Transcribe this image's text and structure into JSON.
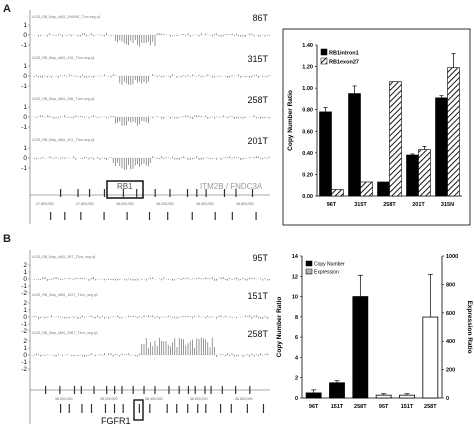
{
  "panels": [
    {
      "letter": "A",
      "genome": {
        "tracks": [
          {
            "sample": "86T",
            "header": "U133_RB_Map_s861_190695_T1nn.seg q1"
          },
          {
            "sample": "315T",
            "header": "U133_RB_Map_s861_315_T1nn.seg q1"
          },
          {
            "sample": "258T",
            "header": "U133_RB_Map_s861_258_T1nn.seg q1"
          },
          {
            "sample": "201T",
            "header": "U133_RB_Map_s861_201_T1nn.seg q1"
          }
        ],
        "y_ticks": [
          "1",
          "0",
          "-1"
        ],
        "gene_labels": [
          "RB1",
          "ITM2B / FNDC3A"
        ],
        "coordinates": [
          "47,500,000",
          "47,800,000",
          "48,000,000",
          "48,200,000",
          "48,400,000",
          "48,600,000"
        ]
      }
    },
    {
      "letter": "B",
      "genome": {
        "tracks": [
          {
            "sample": "95T",
            "header": "U133_RB_Map_s861_95T_T1nn_seg q1"
          },
          {
            "sample": "151T",
            "header": "U133_RB_Map_s861_151T_T1nn_seg q1"
          },
          {
            "sample": "258T",
            "header": "U133_RB_Map_s861_258T_T1nn_seg q1"
          }
        ],
        "y_ticks": [
          "2",
          "1",
          "0",
          "-1",
          "-2"
        ],
        "gene_labels": [
          "FGFR1"
        ],
        "coordinates": [
          "38,000,000",
          "38,200,000",
          "38,400,000",
          "38,600,000",
          "38,800,000"
        ]
      }
    }
  ],
  "chart_data": [
    {
      "type": "bar",
      "categories": [
        "96T",
        "315T",
        "258T",
        "201T",
        "315N"
      ],
      "series": [
        {
          "name": "RB1intron1",
          "values": [
            0.78,
            0.95,
            0.13,
            0.38,
            0.91
          ],
          "errors": [
            0.04,
            0.07,
            0.0,
            0.01,
            0.02
          ],
          "fill": "#000000"
        },
        {
          "name": "RB1exon27",
          "values": [
            0.06,
            0.13,
            1.06,
            0.43,
            1.19
          ],
          "errors": [
            0.0,
            0.0,
            0.0,
            0.03,
            0.13
          ],
          "fill": "hatch"
        }
      ],
      "title": "",
      "ylabel": "Copy Number Ratio",
      "ylim": [
        0,
        1.4
      ],
      "y_ticks": [
        "0.00",
        "0.20",
        "0.40",
        "0.60",
        "0.80",
        "1.00",
        "1.20",
        "1.40"
      ],
      "legend_position": "top-left"
    },
    {
      "type": "bar",
      "categories": [
        "96T",
        "151T",
        "258T",
        "95T",
        "151T",
        "258T"
      ],
      "series": [
        {
          "name": "Copy Number",
          "values": [
            0.5,
            1.5,
            10.0,
            null,
            null,
            null
          ],
          "errors": [
            0.3,
            0.2,
            2.1,
            null,
            null,
            null
          ],
          "axis": "left",
          "fill": "#000000"
        },
        {
          "name": "Expression",
          "values": [
            null,
            null,
            null,
            20,
            20,
            570
          ],
          "errors": [
            null,
            null,
            null,
            10,
            10,
            300
          ],
          "axis": "right",
          "fill": "#ffffff"
        }
      ],
      "title": "",
      "ylabel": "Copy Number Ratio",
      "ylabel_right": "Expression Ratio",
      "ylim": [
        0,
        14
      ],
      "ylim_right": [
        0,
        1000
      ],
      "y_ticks": [
        "0",
        "2",
        "4",
        "6",
        "8",
        "10",
        "12",
        "14"
      ],
      "y_ticks_right": [
        "0",
        "200",
        "400",
        "600",
        "800",
        "1000"
      ],
      "legend_position": "top-left"
    }
  ]
}
